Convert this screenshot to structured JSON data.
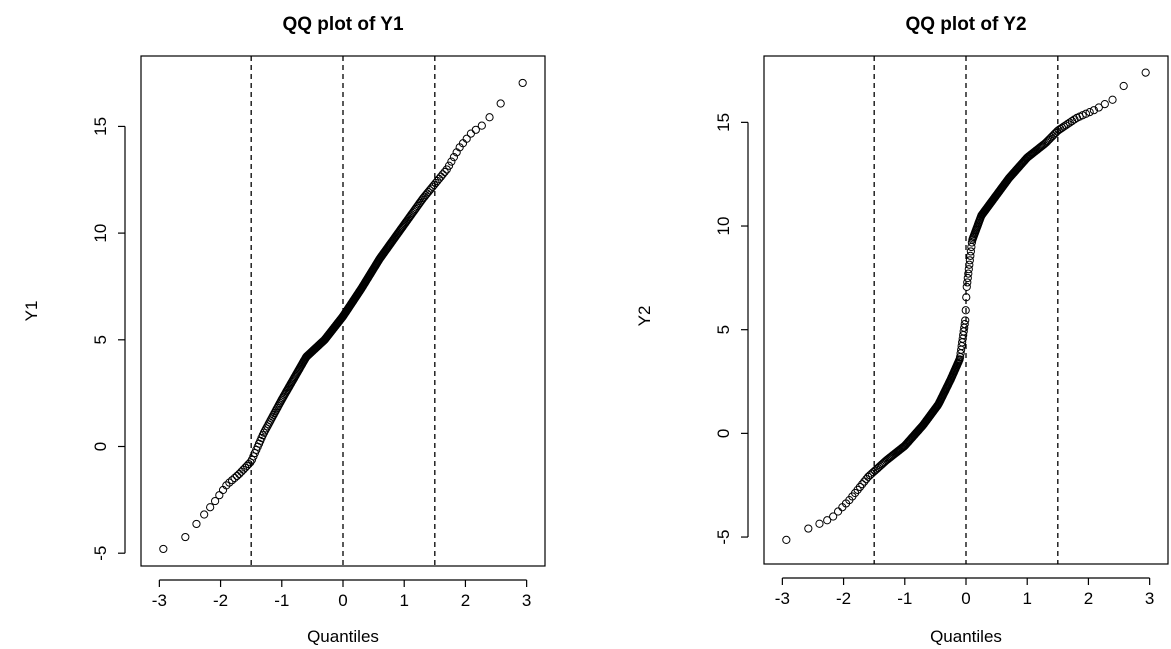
{
  "chart_data": [
    {
      "type": "scatter",
      "title": "QQ plot of Y1",
      "xlabel": "Quantiles",
      "ylabel": "Y1",
      "xlim": [
        -3.3,
        3.3
      ],
      "ylim": [
        -5.6,
        18.3
      ],
      "xticks": [
        -3,
        -2,
        -1,
        0,
        1,
        2,
        3
      ],
      "xtick_labels": [
        "-3",
        "-2",
        "-1",
        "0",
        "1",
        "2",
        "3"
      ],
      "yticks": [
        -5,
        0,
        5,
        10,
        15
      ],
      "ytick_labels": [
        "-5",
        "0",
        "5",
        "10",
        "15"
      ],
      "reference_lines_x": [
        -1.5,
        0,
        1.5
      ],
      "grid": false,
      "point_count": 300,
      "profile": {
        "x": [
          -3.08,
          -2.75,
          -2.5,
          -2.3,
          -2.1,
          -1.9,
          -1.7,
          -1.5,
          -1.3,
          -1.0,
          -0.6,
          -0.3,
          0,
          0.3,
          0.6,
          1.0,
          1.3,
          1.5,
          1.7,
          1.9,
          2.1,
          2.3,
          2.5,
          2.75,
          3.08
        ],
        "y": [
          -4.8,
          -4.8,
          -4.0,
          -3.3,
          -2.6,
          -1.8,
          -1.3,
          -0.7,
          0.6,
          2.2,
          4.2,
          5.0,
          6.1,
          7.4,
          8.8,
          10.4,
          11.6,
          12.3,
          13.0,
          14.0,
          14.7,
          15.1,
          15.8,
          16.7,
          17.3
        ]
      }
    },
    {
      "type": "scatter",
      "title": "QQ plot of Y2",
      "xlabel": "Quantiles",
      "ylabel": "Y2",
      "xlim": [
        -3.3,
        3.3
      ],
      "ylim": [
        -6.3,
        18.2
      ],
      "xticks": [
        -3,
        -2,
        -1,
        0,
        1,
        2,
        3
      ],
      "xtick_labels": [
        "-3",
        "-2",
        "-1",
        "0",
        "1",
        "2",
        "3"
      ],
      "yticks": [
        -5,
        0,
        5,
        10,
        15
      ],
      "ytick_labels": [
        "-5",
        "0",
        "5",
        "10",
        "15"
      ],
      "reference_lines_x": [
        -1.5,
        0,
        1.5
      ],
      "grid": false,
      "point_count": 300,
      "profile": {
        "x": [
          -3.08,
          -2.75,
          -2.5,
          -2.2,
          -1.9,
          -1.6,
          -1.3,
          -1.0,
          -0.7,
          -0.45,
          -0.25,
          -0.1,
          -0.01,
          0.01,
          0.1,
          0.25,
          0.45,
          0.7,
          1.0,
          1.3,
          1.5,
          1.8,
          2.1,
          2.4,
          2.75,
          3.08
        ],
        "y": [
          -5.4,
          -4.8,
          -4.5,
          -4.1,
          -3.2,
          -2.1,
          -1.3,
          -0.6,
          0.4,
          1.4,
          2.6,
          3.6,
          5.5,
          7.0,
          9.3,
          10.5,
          11.3,
          12.3,
          13.3,
          14.0,
          14.6,
          15.2,
          15.6,
          16.1,
          17.4,
          17.4
        ]
      }
    }
  ]
}
